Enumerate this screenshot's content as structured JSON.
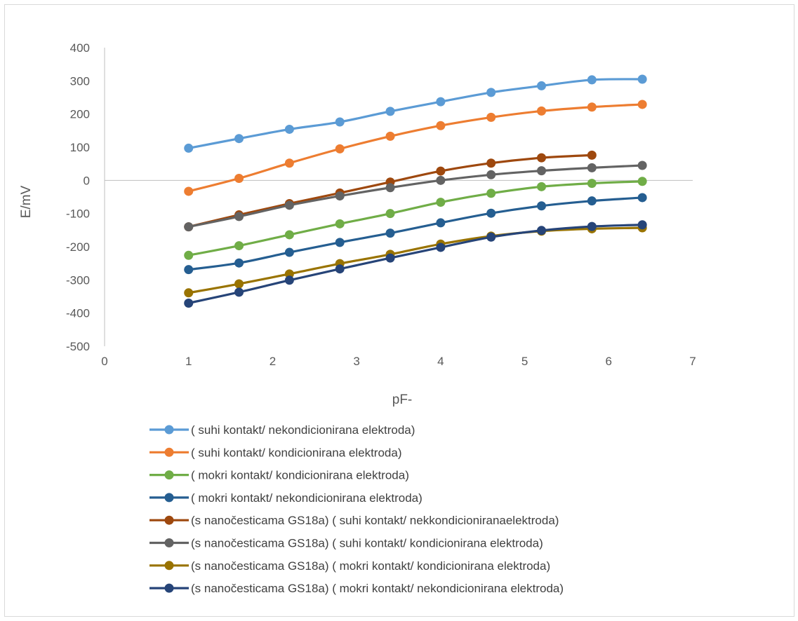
{
  "chart_data": {
    "type": "line",
    "xlabel": "pF-",
    "ylabel": "E/mV",
    "xlim": [
      0,
      7
    ],
    "ylim": [
      -500,
      400
    ],
    "x_ticks": [
      "0",
      "1",
      "2",
      "3",
      "4",
      "5",
      "6",
      "7"
    ],
    "y_ticks": [
      "400",
      "300",
      "200",
      "100",
      "0",
      "-100",
      "-200",
      "-300",
      "-400",
      "-500"
    ],
    "grid": false,
    "legend_position": "bottom",
    "smoothed": true,
    "x": [
      1,
      1.6,
      2.2,
      2.8,
      3.4,
      4,
      4.6,
      5.2,
      5.8,
      6.4
    ],
    "series": [
      {
        "name": "( suhi kontakt/ nekondicionirana elektroda)",
        "color": "#5b9bd5",
        "values": [
          97,
          126,
          154,
          176,
          208,
          237,
          265,
          285,
          303,
          305
        ]
      },
      {
        "name": "( suhi kontakt/ kondicionirana elektroda)",
        "color": "#ed7d31",
        "values": [
          -33,
          6,
          52,
          95,
          133,
          165,
          190,
          209,
          221,
          229
        ]
      },
      {
        "name": "( mokri kontakt/ kondicionirana elektroda)",
        "color": "#70ad47",
        "values": [
          -226,
          -197,
          -164,
          -131,
          -100,
          -66,
          -39,
          -19,
          -9,
          -3
        ]
      },
      {
        "name": "( mokri kontakt/ nekondicionirana elektroda)",
        "color": "#255e91",
        "values": [
          -269,
          -249,
          -217,
          -187,
          -159,
          -128,
          -99,
          -77,
          -62,
          -52
        ]
      },
      {
        "name": "(s nanočesticama GS18a) ( suhi kontakt/ nekkondicioniranaelektroda)",
        "color": "#9e480e",
        "values": [
          -140,
          -104,
          -70,
          -38,
          -5,
          28,
          52,
          68,
          76,
          null
        ]
      },
      {
        "name": "(s nanočesticama GS18a) ( suhi kontakt/ kondicionirana elektroda)",
        "color": "#636363",
        "values": [
          -140,
          -109,
          -75,
          -47,
          -22,
          0,
          17,
          29,
          38,
          45
        ]
      },
      {
        "name": "(s nanočesticama GS18a) ( mokri kontakt/ kondicionirana elektroda)",
        "color": "#997300",
        "values": [
          -339,
          -312,
          -282,
          -251,
          -223,
          -192,
          -168,
          -153,
          -146,
          -143
        ]
      },
      {
        "name": "(s nanočesticama GS18a) ( mokri kontakt/ nekondicionirana elektroda)",
        "color": "#264478",
        "values": [
          -370,
          -337,
          -301,
          -267,
          -234,
          -202,
          -171,
          -151,
          -139,
          -134
        ]
      }
    ]
  }
}
